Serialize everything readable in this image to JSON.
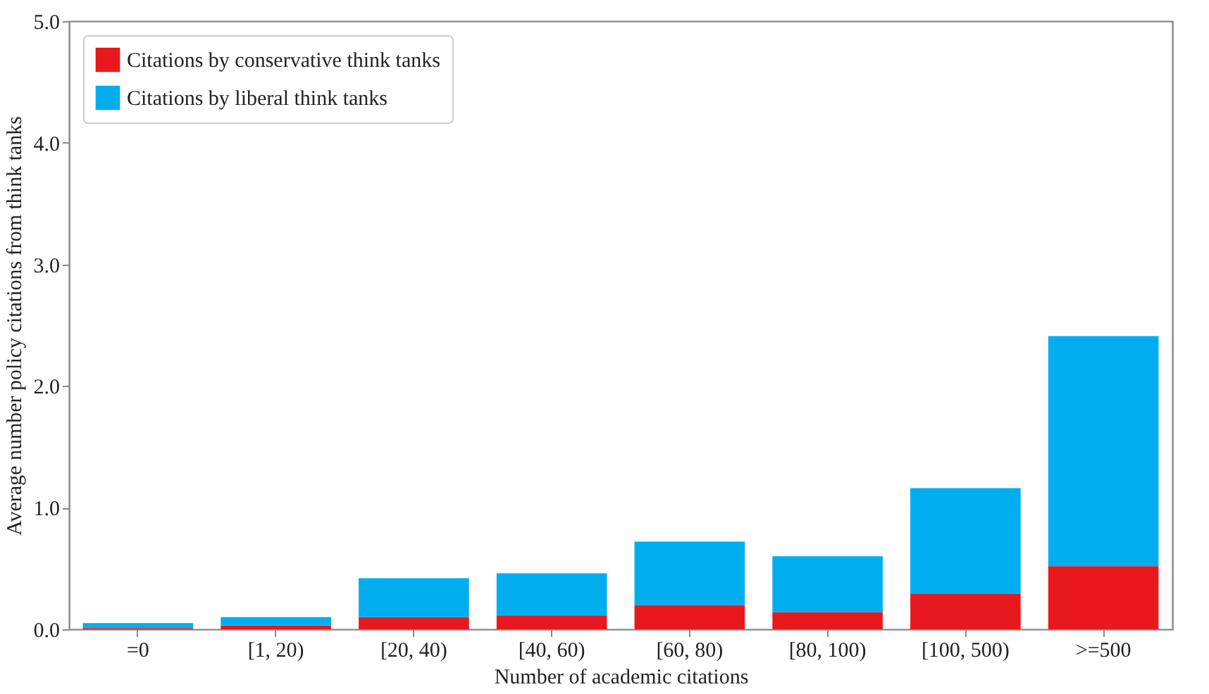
{
  "chart_data": {
    "type": "bar",
    "stacked": true,
    "xlabel": "Number of academic citations",
    "ylabel": "Average number policy citations from think tanks",
    "categories": [
      "=0",
      "[1, 20)",
      "[20, 40)",
      "[40, 60)",
      "[60, 80)",
      "[80, 100)",
      "[100, 500)",
      ">=500"
    ],
    "series": [
      {
        "name": "Citations by conservative think tanks",
        "color": "#e8191e",
        "values": [
          0.01,
          0.03,
          0.1,
          0.11,
          0.2,
          0.14,
          0.29,
          0.52
        ]
      },
      {
        "name": "Citations by liberal think tanks",
        "color": "#00aeef",
        "values": [
          0.04,
          0.07,
          0.32,
          0.35,
          0.52,
          0.46,
          0.87,
          1.89
        ]
      }
    ],
    "ylim": [
      0,
      5.0
    ],
    "yticks": [
      {
        "value": 0,
        "label": "0.0"
      },
      {
        "value": 1,
        "label": "1.0"
      },
      {
        "value": 2,
        "label": "2.0"
      },
      {
        "value": 3,
        "label": "3.0"
      },
      {
        "value": 4,
        "label": "4.0"
      },
      {
        "value": 5,
        "label": "5.0"
      }
    ],
    "legend": "top left",
    "grid": false
  }
}
